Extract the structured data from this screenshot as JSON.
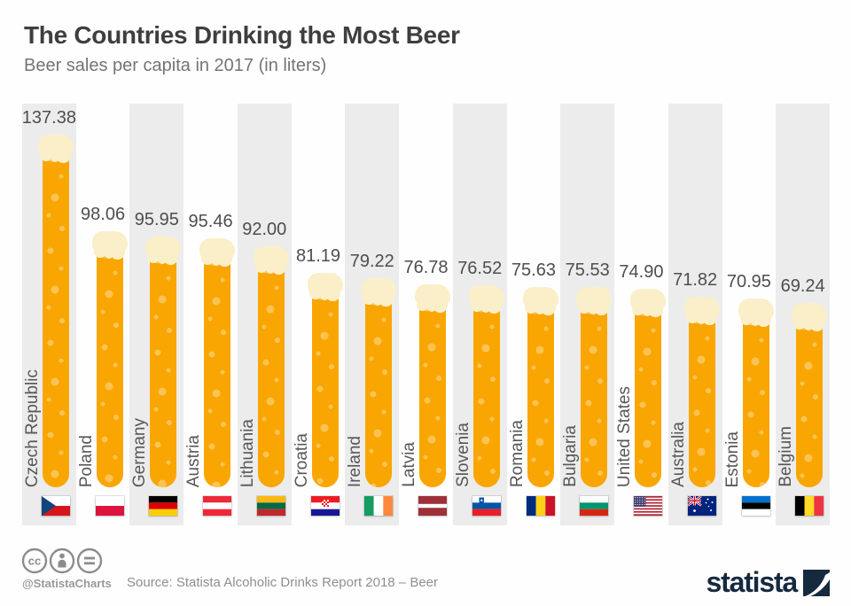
{
  "header": {
    "title": "The Countries Drinking the Most Beer",
    "subtitle": "Beer sales per capita in 2017 (in liters)"
  },
  "chart_data": {
    "type": "bar",
    "title": "The Countries Drinking the Most Beer",
    "subtitle": "Beer sales per capita in 2017 (in liters)",
    "unit": "liters per capita",
    "orientation": "vertical",
    "bar_style": "beer-glass",
    "categories": [
      "Czech Republic",
      "Poland",
      "Germany",
      "Austria",
      "Lithuania",
      "Croatia",
      "Ireland",
      "Latvia",
      "Slovenia",
      "Romania",
      "Bulgaria",
      "United States",
      "Australia",
      "Estonia",
      "Belgium"
    ],
    "values": [
      137.38,
      98.06,
      95.95,
      95.46,
      92.0,
      81.19,
      79.22,
      76.78,
      76.52,
      75.63,
      75.53,
      74.9,
      71.82,
      70.95,
      69.24
    ],
    "flags": [
      "cz",
      "pl",
      "de",
      "at",
      "lt",
      "hr",
      "ie",
      "lv",
      "si",
      "ro",
      "bg",
      "us",
      "au",
      "ee",
      "be"
    ],
    "ylim": [
      0,
      137.38
    ],
    "grid": false,
    "legend": false,
    "colors": {
      "beer": "#f9a602",
      "foam": "#faefc9",
      "bubbles": "rgba(255,255,255,0.32)",
      "stripe": "#ececec",
      "value_label": "#4e4e4e",
      "country_label": "#575757"
    }
  },
  "footer": {
    "license_icons": [
      "cc-icon",
      "attribution-icon",
      "equal-icon"
    ],
    "handle": "@StatistaCharts",
    "source": "Source: Statista Alcoholic Drinks Report 2018 – Beer",
    "brand": "statista",
    "brand_color": "#152a3e"
  }
}
